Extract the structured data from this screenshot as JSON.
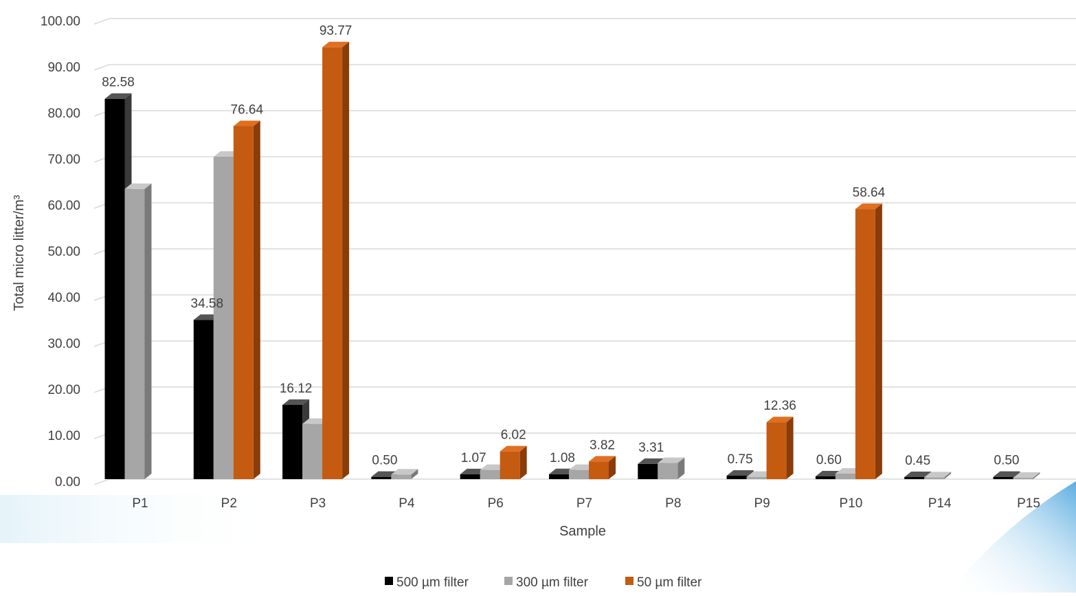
{
  "chart_data": {
    "type": "bar",
    "title": "",
    "xlabel": "Sample",
    "ylabel": "Total micro litter/m³",
    "ylim": [
      0,
      100
    ],
    "ytick_step": 10,
    "ytick_labels": [
      "0.00",
      "10.00",
      "20.00",
      "30.00",
      "40.00",
      "50.00",
      "60.00",
      "70.00",
      "80.00",
      "90.00",
      "100.00"
    ],
    "grid": true,
    "legend_position": "bottom",
    "categories": [
      "P1",
      "P2",
      "P3",
      "P4",
      "P6",
      "P7",
      "P8",
      "P9",
      "P10",
      "P14",
      "P15"
    ],
    "series": [
      {
        "name": "500 µm filter",
        "color": "#000000",
        "side": "#3a3a3a",
        "top": "#555555",
        "values": [
          82.58,
          34.58,
          16.12,
          0.5,
          1.07,
          1.08,
          3.31,
          0.75,
          0.6,
          0.45,
          0.5
        ]
      },
      {
        "name": "300 µm filter",
        "color": "#a6a6a6",
        "side": "#7a7a7a",
        "top": "#c8c8c8",
        "values": [
          63.0,
          70.0,
          12.0,
          1.0,
          2.0,
          2.0,
          3.5,
          0.5,
          1.2,
          0.4,
          0.3
        ]
      },
      {
        "name": "50 µm filter",
        "color": "#c55a11",
        "side": "#8a3c0a",
        "top": "#e07020",
        "values": [
          null,
          76.64,
          93.77,
          null,
          6.02,
          3.82,
          null,
          12.36,
          58.64,
          null,
          null
        ]
      }
    ],
    "data_labels": [
      {
        "series": 0,
        "index": 0,
        "text": "82.58"
      },
      {
        "series": 0,
        "index": 1,
        "text": "34.58"
      },
      {
        "series": 2,
        "index": 1,
        "text": "76.64"
      },
      {
        "series": 0,
        "index": 2,
        "text": "16.12"
      },
      {
        "series": 2,
        "index": 2,
        "text": "93.77"
      },
      {
        "series": 0,
        "index": 3,
        "text": "0.50"
      },
      {
        "series": 0,
        "index": 4,
        "text": "1.07"
      },
      {
        "series": 2,
        "index": 4,
        "text": "6.02"
      },
      {
        "series": 0,
        "index": 5,
        "text": "1.08"
      },
      {
        "series": 2,
        "index": 5,
        "text": "3.82"
      },
      {
        "series": 0,
        "index": 6,
        "text": "3.31"
      },
      {
        "series": 0,
        "index": 7,
        "text": "0.75"
      },
      {
        "series": 2,
        "index": 7,
        "text": "12.36"
      },
      {
        "series": 0,
        "index": 8,
        "text": "0.60"
      },
      {
        "series": 2,
        "index": 8,
        "text": "58.64"
      },
      {
        "series": 0,
        "index": 9,
        "text": "0.45"
      },
      {
        "series": 0,
        "index": 10,
        "text": "0.50"
      }
    ]
  }
}
